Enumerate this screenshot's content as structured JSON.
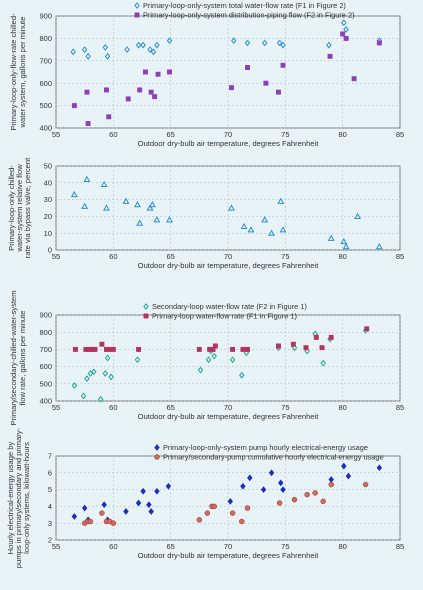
{
  "chart_data": [
    {
      "type": "scatter",
      "xlabel": "Outdoor dry-bulb air temperature, degrees Fahrenheit",
      "ylabel": "Primary-loop-only-flow-rate chilled-water system, gallons per minute",
      "xlim": [
        55,
        85
      ],
      "ylim": [
        400,
        900
      ],
      "xticks": [
        55,
        60,
        65,
        70,
        75,
        80,
        85
      ],
      "yticks": [
        400,
        500,
        600,
        700,
        800,
        900
      ],
      "grid": true,
      "legend_position": "top-right",
      "series": [
        {
          "name": "Primary-loop-only-system total water-flow rate (F1 in Figure 2)",
          "marker": "open-diamond",
          "color": "#2b8fd0",
          "x": [
            56.5,
            57.5,
            57.8,
            59.3,
            59.5,
            61.2,
            62.2,
            62.6,
            63.2,
            63.5,
            63.8,
            64.9,
            70.5,
            71.7,
            73.2,
            74.5,
            74.8,
            78.8,
            80.1,
            80.3,
            83.2
          ],
          "y": [
            740,
            750,
            720,
            760,
            720,
            750,
            770,
            770,
            750,
            740,
            770,
            790,
            790,
            780,
            780,
            780,
            770,
            770,
            870,
            840,
            790
          ]
        },
        {
          "name": "Primary-loop-only-system distribution-piping flow (F2 in Figure 2)",
          "marker": "filled-square",
          "color": "#8e3fb7",
          "x": [
            56.6,
            57.7,
            57.8,
            59.4,
            59.6,
            61.3,
            62.3,
            62.8,
            63.3,
            63.6,
            63.9,
            64.9,
            70.3,
            71.7,
            73.3,
            74.4,
            74.8,
            78.9,
            80.0,
            80.3,
            81.0,
            83.2
          ],
          "y": [
            500,
            560,
            420,
            570,
            450,
            530,
            570,
            650,
            560,
            540,
            640,
            650,
            580,
            670,
            600,
            560,
            680,
            720,
            820,
            800,
            620,
            780
          ]
        }
      ]
    },
    {
      "type": "scatter",
      "xlabel": "Outdoor dry-bulb air temperature, degrees Fahrenheit",
      "ylabel": "Primary-loop-only chilled-water system relative flow rate via bypass valve, percent",
      "xlim": [
        55,
        85
      ],
      "ylim": [
        0,
        50
      ],
      "xticks": [
        55,
        60,
        65,
        70,
        75,
        80,
        85
      ],
      "yticks": [
        0,
        10,
        20,
        30,
        40,
        50
      ],
      "grid": true,
      "series": [
        {
          "name": "",
          "marker": "open-triangle",
          "color": "#2b8fd0",
          "x": [
            56.6,
            57.5,
            57.7,
            59.2,
            59.4,
            61.1,
            62.1,
            62.3,
            63.2,
            63.4,
            63.8,
            64.9,
            70.3,
            71.4,
            72.0,
            73.2,
            73.8,
            74.6,
            74.8,
            79.0,
            80.1,
            80.3,
            81.3,
            83.2
          ],
          "y": [
            33,
            26,
            42,
            39,
            25,
            29,
            27,
            16,
            25,
            27,
            18,
            18,
            25,
            14,
            12,
            18,
            10,
            29,
            12,
            7,
            5,
            2,
            20,
            2
          ]
        }
      ]
    },
    {
      "type": "scatter",
      "xlabel": "Outdoor dry-bulb air temperature, degrees Fahrenheit",
      "ylabel": "Primary/secondary-chilled-water-system flow rate, gallons per minute",
      "xlim": [
        55,
        85
      ],
      "ylim": [
        400,
        900
      ],
      "xticks": [
        55,
        60,
        65,
        70,
        75,
        80,
        85
      ],
      "yticks": [
        400,
        500,
        600,
        700,
        800,
        900
      ],
      "grid": true,
      "legend_position": "top-right",
      "series": [
        {
          "name": "Secondary-loop water-flow rate (F2 in Figure 1)",
          "marker": "open-diamond",
          "color": "#1fa59a",
          "x": [
            56.6,
            57.4,
            57.7,
            58.0,
            58.3,
            58.9,
            59.3,
            59.5,
            59.8,
            62.1,
            67.6,
            68.3,
            68.5,
            68.8,
            70.4,
            71.2,
            71.6,
            74.4,
            75.8,
            76.9,
            77.6,
            78.3,
            78.9,
            82.0
          ],
          "y": [
            490,
            430,
            530,
            560,
            570,
            410,
            560,
            650,
            540,
            640,
            580,
            640,
            690,
            660,
            640,
            550,
            680,
            710,
            710,
            690,
            790,
            620,
            760,
            810
          ]
        },
        {
          "name": "Primary-loop water-flow rate (F1 in Figure 1)",
          "marker": "filled-square",
          "color": "#b5335c",
          "x": [
            56.7,
            57.6,
            57.9,
            58.2,
            58.4,
            59.0,
            59.4,
            59.7,
            60.0,
            62.2,
            67.5,
            68.4,
            68.7,
            68.9,
            70.4,
            71.3,
            71.7,
            74.4,
            75.7,
            76.8,
            77.7,
            78.2,
            79.0,
            82.1
          ],
          "y": [
            700,
            700,
            700,
            700,
            700,
            730,
            700,
            700,
            700,
            700,
            700,
            700,
            700,
            720,
            700,
            700,
            700,
            720,
            730,
            710,
            770,
            710,
            770,
            820
          ]
        }
      ]
    },
    {
      "type": "scatter",
      "xlabel": "Outdoor dry-bulb air temperature, degrees Fahrenheit",
      "ylabel": "Hourly electrical-energy usage by pumps in primary/secondary and primary-loop-only systems, kilowatt-hours",
      "xlim": [
        55,
        85
      ],
      "ylim": [
        2,
        7
      ],
      "xticks": [
        55,
        60,
        65,
        70,
        75,
        80,
        85
      ],
      "yticks": [
        2,
        3,
        4,
        5,
        6,
        7
      ],
      "grid": true,
      "legend_position": "top-right",
      "series": [
        {
          "name": "Primary-loop-only-system pump hourly electrical-energy usage",
          "marker": "filled-diamond",
          "color": "#1f2fc0",
          "x": [
            56.6,
            57.5,
            57.8,
            59.2,
            59.5,
            61.1,
            62.2,
            62.6,
            63.1,
            63.3,
            63.8,
            64.8,
            70.2,
            71.3,
            71.9,
            73.1,
            73.8,
            74.6,
            74.8,
            79.0,
            80.1,
            80.5,
            83.2
          ],
          "y": [
            3.4,
            3.9,
            3.2,
            4.1,
            3.2,
            3.7,
            4.2,
            4.9,
            4.1,
            3.7,
            4.9,
            5.2,
            4.3,
            5.2,
            5.7,
            5.0,
            6.0,
            5.4,
            5.0,
            5.6,
            6.4,
            5.8,
            6.3
          ]
        },
        {
          "name": "Primary/secondary-pump cumulative hourly electrical-energy usage",
          "marker": "filled-circle",
          "color": "#d46a5e",
          "x": [
            57.5,
            57.8,
            58.0,
            59.0,
            59.4,
            59.7,
            60.0,
            67.5,
            68.2,
            68.6,
            68.8,
            70.4,
            71.2,
            71.7,
            74.5,
            75.8,
            76.9,
            77.6,
            78.3,
            79.0,
            82.0
          ],
          "y": [
            3.0,
            3.1,
            3.1,
            3.6,
            3.1,
            3.1,
            3.0,
            3.2,
            3.6,
            4.0,
            4.0,
            3.6,
            3.1,
            3.9,
            4.2,
            4.4,
            4.7,
            4.8,
            4.3,
            5.3,
            5.3
          ]
        }
      ]
    }
  ]
}
